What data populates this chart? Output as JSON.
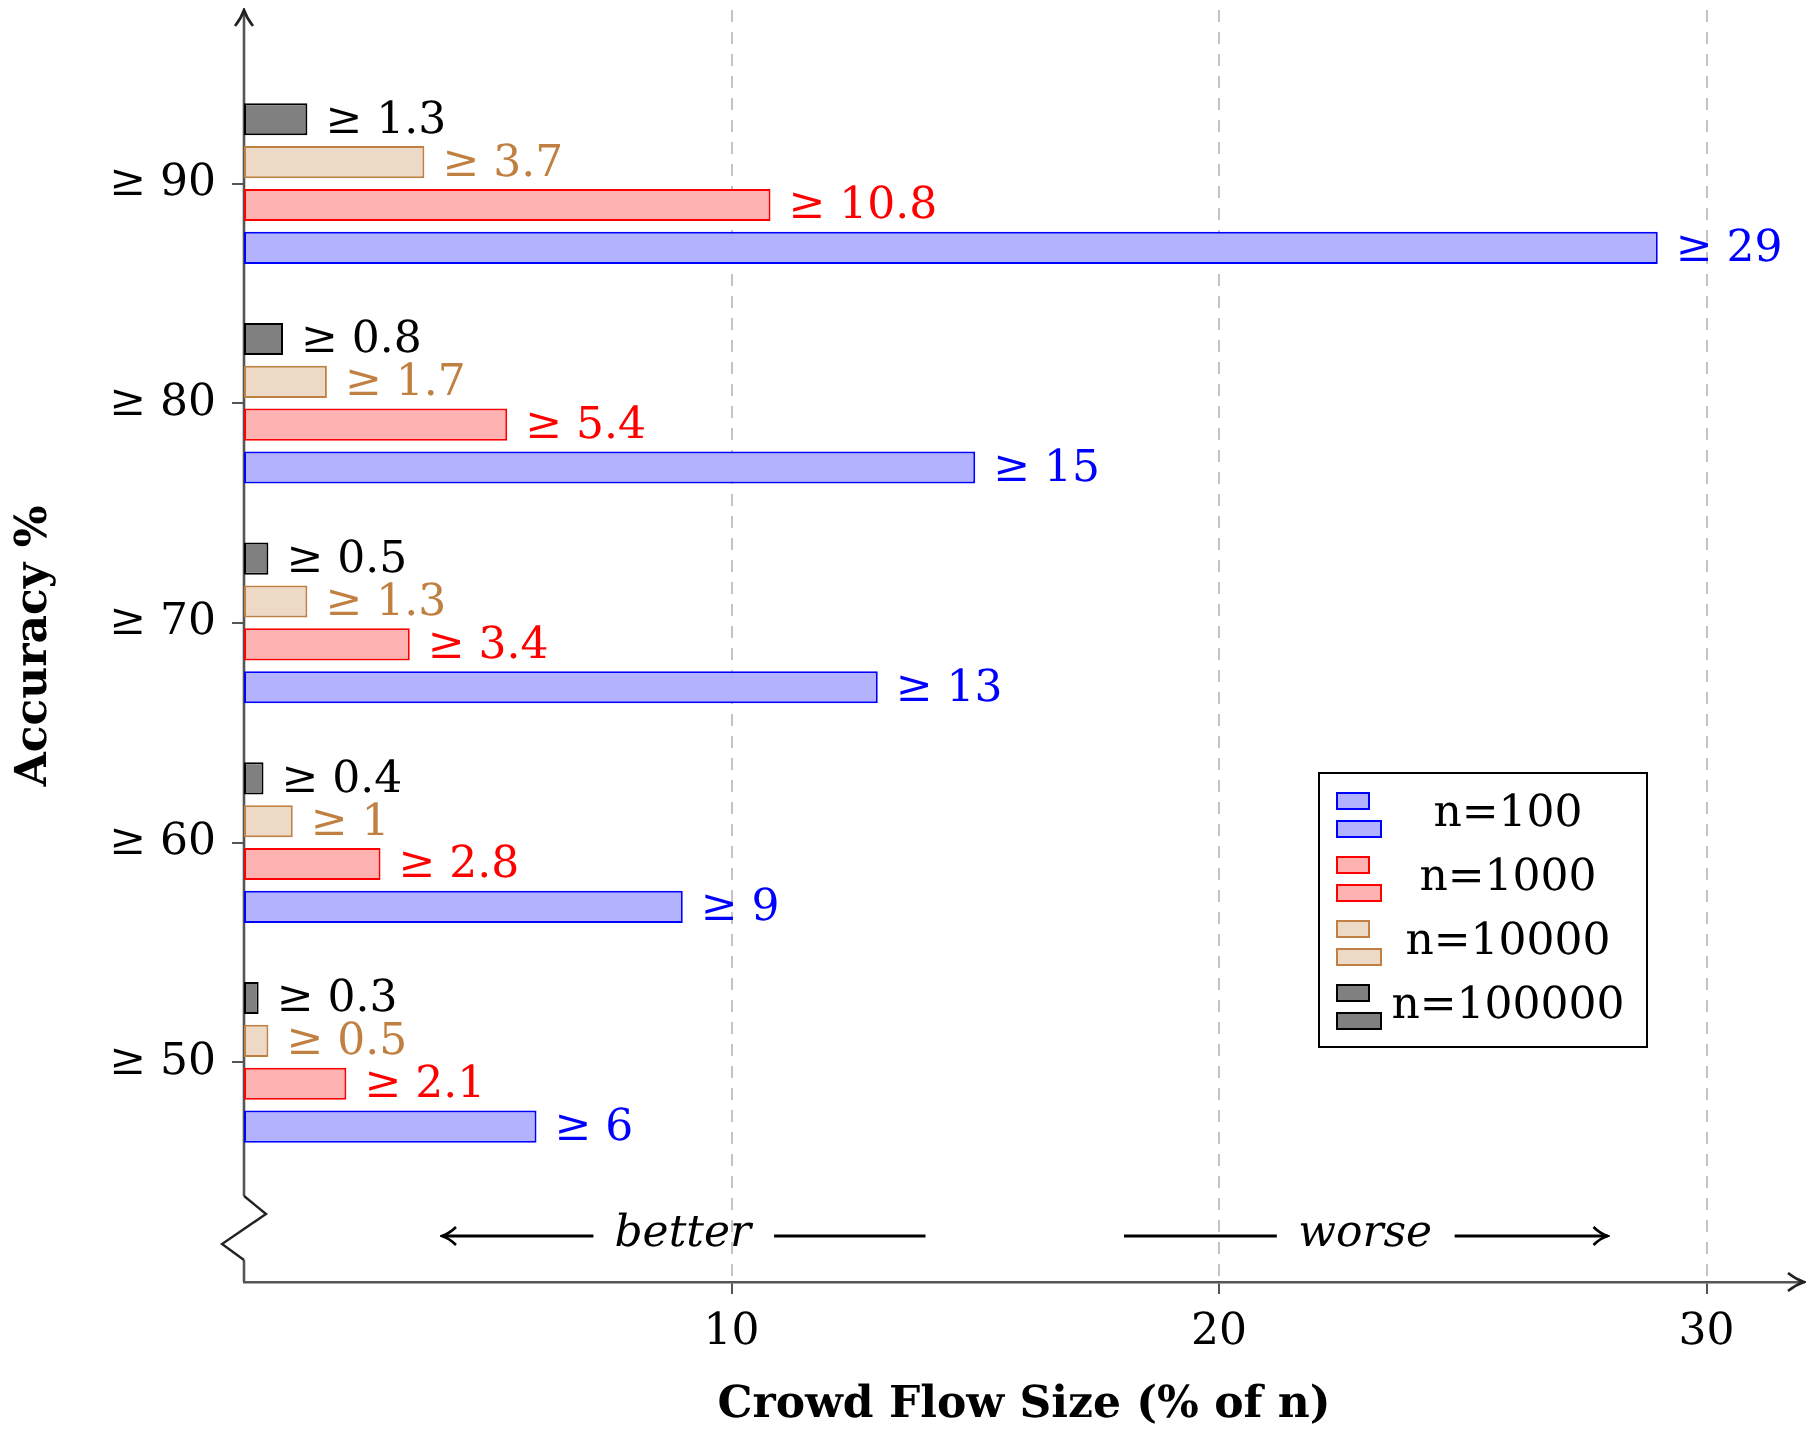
{
  "chart_data": {
    "type": "bar",
    "orientation": "horizontal",
    "xlabel": "Crowd Flow Size (% of n)",
    "ylabel": "Accuracy %",
    "categories": [
      "≥ 90",
      "≥ 80",
      "≥ 70",
      "≥ 60",
      "≥ 50"
    ],
    "series": [
      {
        "name": "n=100",
        "color": "#b2b2ff",
        "values": [
          29,
          15,
          13,
          9,
          6
        ],
        "value_labels": [
          "≥ 29",
          "≥ 15",
          "≥ 13",
          "≥ 9",
          "≥ 6"
        ]
      },
      {
        "name": "n=1000",
        "color": "#ffb2b2",
        "values": [
          10.8,
          5.4,
          3.4,
          2.8,
          2.1
        ],
        "value_labels": [
          "≥ 10.8",
          "≥ 5.4",
          "≥ 3.4",
          "≥ 2.8",
          "≥ 2.1"
        ]
      },
      {
        "name": "n=10000",
        "color": "#ecd9c6",
        "values": [
          3.7,
          1.7,
          1.3,
          1,
          0.5
        ],
        "value_labels": [
          "≥ 3.7",
          "≥ 1.7",
          "≥ 1.3",
          "≥ 1",
          "≥ 0.5"
        ]
      },
      {
        "name": "n=100000",
        "color": "#808080",
        "values": [
          1.3,
          0.8,
          0.5,
          0.4,
          0.3
        ],
        "value_labels": [
          "≥ 1.3",
          "≥ 0.8",
          "≥ 0.5",
          "≥ 0.4",
          "≥ 0.3"
        ]
      }
    ],
    "xlim": [
      0,
      32
    ],
    "xticks": [
      10,
      20,
      30
    ],
    "grid": "x",
    "legend": "bottom right",
    "annotations": [
      "better",
      "worse"
    ]
  }
}
